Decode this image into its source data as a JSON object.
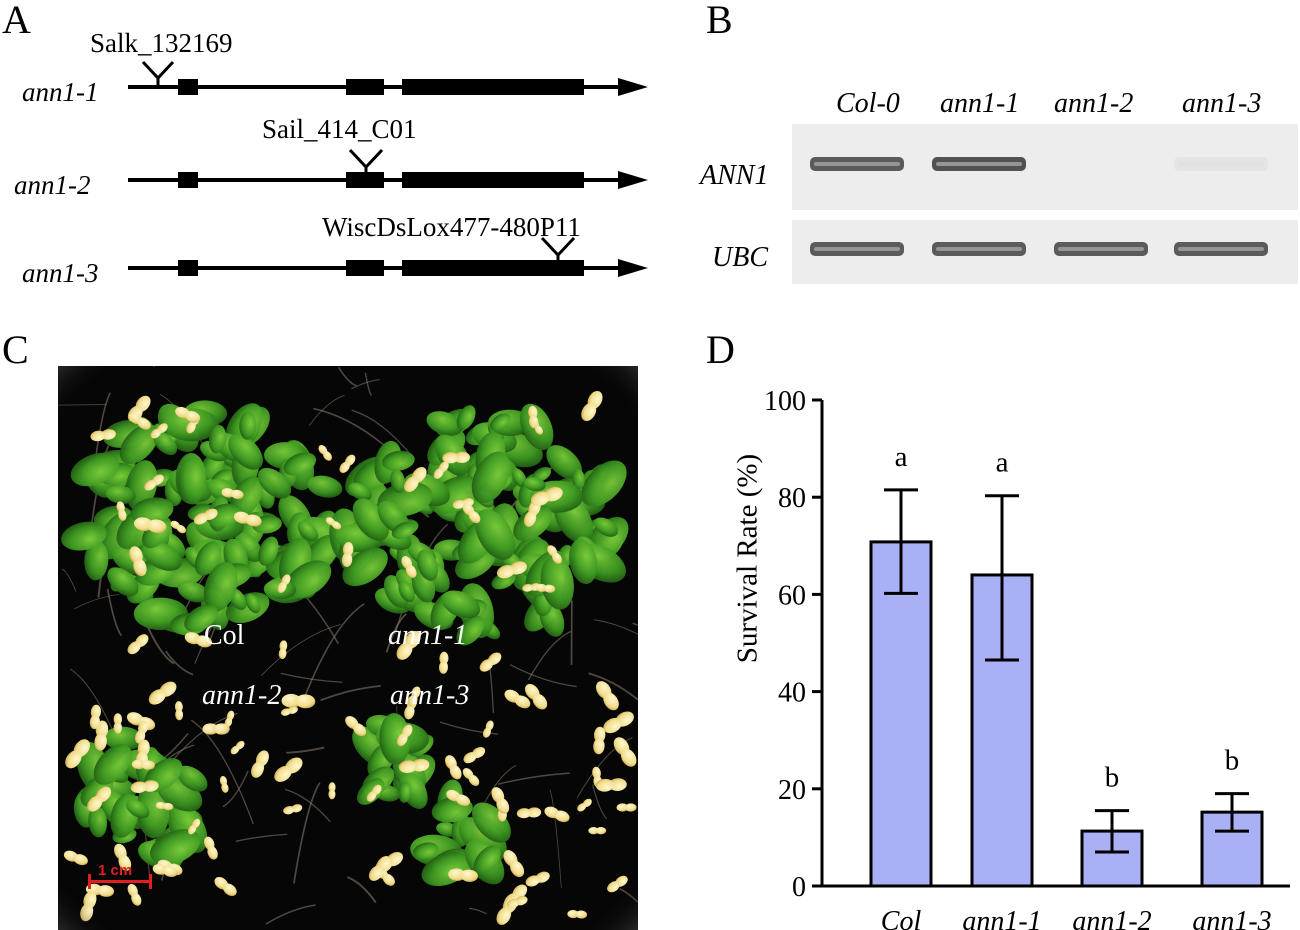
{
  "panel_a": {
    "letter": "A",
    "lines": [
      {
        "label": "ann1-1",
        "insertion": "Salk_132169"
      },
      {
        "label": "ann1-2",
        "insertion": "Sail_414_C01"
      },
      {
        "label": "ann1-3",
        "insertion": "WiscDsLox477-480P11"
      }
    ]
  },
  "panel_b": {
    "letter": "B",
    "lanes": [
      "Col-0",
      "ann1-1",
      "ann1-2",
      "ann1-3"
    ],
    "rows": [
      {
        "gene": "ANN1",
        "band_intensity": [
          0.9,
          0.95,
          0.0,
          0.05
        ]
      },
      {
        "gene": "UBC",
        "band_intensity": [
          0.9,
          0.9,
          0.9,
          0.9
        ]
      }
    ]
  },
  "panel_c": {
    "letter": "C",
    "labels": {
      "col": "Col",
      "ann1_1": "ann1-1",
      "ann1_2": "ann1-2",
      "ann1_3": "ann1-3"
    },
    "scale_bar": "1 cm",
    "scale_color": "#e02020"
  },
  "panel_d": {
    "letter": "D",
    "chart_data": {
      "type": "bar",
      "categories": [
        "Col",
        "ann1-1",
        "ann1-2",
        "ann1-3"
      ],
      "values": [
        70.8,
        64.0,
        11.3,
        15.2
      ],
      "error_low": [
        60.2,
        46.5,
        7.0,
        11.3
      ],
      "error_high": [
        81.5,
        80.3,
        15.5,
        19.0
      ],
      "significance": [
        "a",
        "a",
        "b",
        "b"
      ],
      "ylabel": "Survival Rate  (%)",
      "ylim": [
        0,
        100
      ],
      "yticks": [
        0,
        20,
        40,
        60,
        80,
        100
      ],
      "bar_color": "#aab0f5"
    }
  }
}
